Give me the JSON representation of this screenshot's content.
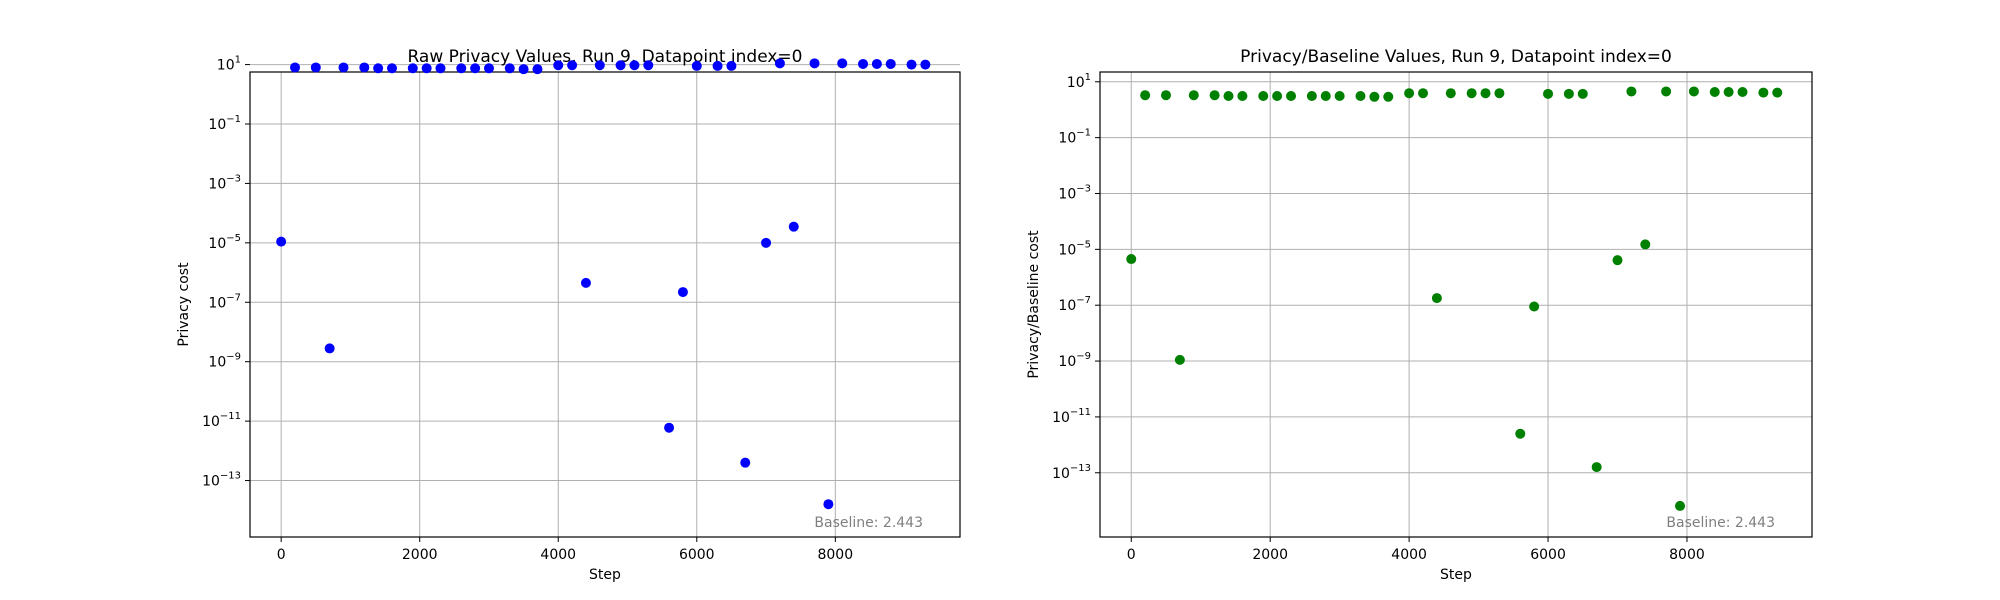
{
  "chart_data": [
    {
      "type": "scatter",
      "title": "Raw Privacy Values, Run 9, Datapoint index=0",
      "xlabel": "Step",
      "ylabel": "Privacy cost",
      "yscale": "log",
      "xlim": [
        -450,
        9800
      ],
      "ylim_exp": [
        -14.9,
        0.75
      ],
      "x_ticks": [
        0,
        2000,
        4000,
        6000,
        8000
      ],
      "y_tick_exponents": [
        1,
        -1,
        -3,
        -5,
        -7,
        -9,
        -11,
        -13
      ],
      "grid": true,
      "color": "#0000ff",
      "annotation": "Baseline: 2.443",
      "points": [
        [
          0,
          1.1e-05
        ],
        [
          200,
          8.0
        ],
        [
          500,
          8.0
        ],
        [
          700,
          2.8e-09
        ],
        [
          900,
          8.0
        ],
        [
          1200,
          8.0
        ],
        [
          1400,
          7.5
        ],
        [
          1600,
          7.5
        ],
        [
          1900,
          7.5
        ],
        [
          2100,
          7.5
        ],
        [
          2300,
          7.5
        ],
        [
          2600,
          7.5
        ],
        [
          2800,
          7.5
        ],
        [
          3000,
          7.5
        ],
        [
          3300,
          7.5
        ],
        [
          3500,
          7.0
        ],
        [
          3700,
          7.0
        ],
        [
          4000,
          9.5
        ],
        [
          4200,
          9.5
        ],
        [
          4400,
          4.5e-07
        ],
        [
          4600,
          9.5
        ],
        [
          4900,
          9.5
        ],
        [
          5100,
          9.5
        ],
        [
          5300,
          9.5
        ],
        [
          5600,
          6e-12
        ],
        [
          5800,
          2.2e-07
        ],
        [
          6000,
          9.0
        ],
        [
          6300,
          9.0
        ],
        [
          6500,
          9.0
        ],
        [
          6700,
          4e-13
        ],
        [
          7000,
          1e-05
        ],
        [
          7200,
          11.0
        ],
        [
          7400,
          3.5e-05
        ],
        [
          7700,
          11.0
        ],
        [
          7900,
          1.6e-14
        ],
        [
          8100,
          11.0
        ],
        [
          8400,
          10.5
        ],
        [
          8600,
          10.5
        ],
        [
          8800,
          10.5
        ],
        [
          9100,
          10.0
        ],
        [
          9300,
          10.0
        ]
      ]
    },
    {
      "type": "scatter",
      "title": "Privacy/Baseline Values, Run 9, Datapoint index=0",
      "xlabel": "Step",
      "ylabel": "Privacy/Baseline cost",
      "yscale": "log",
      "xlim": [
        -450,
        9800
      ],
      "ylim_exp": [
        -15.3,
        1.35
      ],
      "x_ticks": [
        0,
        2000,
        4000,
        6000,
        8000
      ],
      "y_tick_exponents": [
        1,
        -1,
        -3,
        -5,
        -7,
        -9,
        -11,
        -13
      ],
      "grid": true,
      "color": "#008000",
      "annotation": "Baseline: 2.443",
      "points": [
        [
          0,
          4.5e-06
        ],
        [
          200,
          3.3
        ],
        [
          500,
          3.3
        ],
        [
          700,
          1.1e-09
        ],
        [
          900,
          3.3
        ],
        [
          1200,
          3.3
        ],
        [
          1400,
          3.1
        ],
        [
          1600,
          3.1
        ],
        [
          1900,
          3.1
        ],
        [
          2100,
          3.1
        ],
        [
          2300,
          3.1
        ],
        [
          2600,
          3.1
        ],
        [
          2800,
          3.1
        ],
        [
          3000,
          3.1
        ],
        [
          3300,
          3.1
        ],
        [
          3500,
          2.9
        ],
        [
          3700,
          2.9
        ],
        [
          4000,
          3.9
        ],
        [
          4200,
          3.9
        ],
        [
          4400,
          1.8e-07
        ],
        [
          4600,
          3.9
        ],
        [
          4900,
          3.9
        ],
        [
          5100,
          3.9
        ],
        [
          5300,
          3.9
        ],
        [
          5600,
          2.5e-12
        ],
        [
          5800,
          9e-08
        ],
        [
          6000,
          3.7
        ],
        [
          6300,
          3.7
        ],
        [
          6500,
          3.7
        ],
        [
          6700,
          1.6e-13
        ],
        [
          7000,
          4.1e-06
        ],
        [
          7200,
          4.5
        ],
        [
          7400,
          1.5e-05
        ],
        [
          7700,
          4.5
        ],
        [
          7900,
          6.5e-15
        ],
        [
          8100,
          4.5
        ],
        [
          8400,
          4.3
        ],
        [
          8600,
          4.3
        ],
        [
          8800,
          4.3
        ],
        [
          9100,
          4.1
        ],
        [
          9300,
          4.1
        ]
      ]
    }
  ]
}
